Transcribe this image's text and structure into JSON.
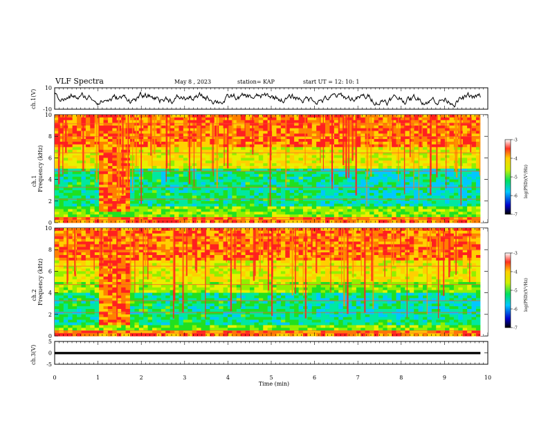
{
  "header": {
    "title": "VLF Spectra",
    "date": "May 8  , 2023",
    "station": "station= KAP",
    "start_ut": "start  UT  =    12: 10: 1"
  },
  "chart_data": [
    {
      "type": "line",
      "name": "ch1-waveform",
      "ylabel": "ch.1(V)",
      "ylim": [
        -10,
        10
      ],
      "yticks": [
        "10",
        "-10"
      ],
      "xlim": [
        0,
        10
      ],
      "x_extent": [
        0,
        9.83
      ]
    },
    {
      "type": "heatmap",
      "name": "ch1-spectrogram",
      "ylabel": "ch.1\nFrequency (kHz)",
      "ylim": [
        0,
        10
      ],
      "yticks": [
        "0",
        "2",
        "4",
        "6",
        "8",
        "10"
      ],
      "xlim": [
        0,
        10
      ],
      "x_extent": [
        0,
        9.83
      ],
      "colorbar": {
        "label": "log(PSD)(V²/Hz)",
        "range": [
          -7,
          -3
        ],
        "ticks": [
          "-3",
          "-4",
          "-5",
          "-6",
          "-7"
        ]
      }
    },
    {
      "type": "heatmap",
      "name": "ch2-spectrogram",
      "ylabel": "ch.2\nFrequency (kHz)",
      "ylim": [
        0,
        10
      ],
      "yticks": [
        "0",
        "2",
        "4",
        "6",
        "8",
        "10"
      ],
      "xlim": [
        0,
        10
      ],
      "x_extent": [
        0,
        9.83
      ],
      "colorbar": {
        "label": "log(PSD)(V²/Hz)",
        "range": [
          -7,
          -3
        ],
        "ticks": [
          "-3",
          "-4",
          "-5",
          "-6",
          "-7"
        ]
      }
    },
    {
      "type": "line",
      "name": "ch3-trace",
      "ylabel": "ch.3(V)",
      "ylim": [
        -5,
        5
      ],
      "yticks": [
        "5",
        "0",
        "-5"
      ],
      "xlim": [
        0,
        10
      ],
      "x_extent": [
        0,
        9.83
      ],
      "xlabel": "Time  (min)",
      "xticks": [
        "0",
        "1",
        "2",
        "3",
        "4",
        "5",
        "6",
        "7",
        "8",
        "9",
        "10"
      ]
    }
  ]
}
